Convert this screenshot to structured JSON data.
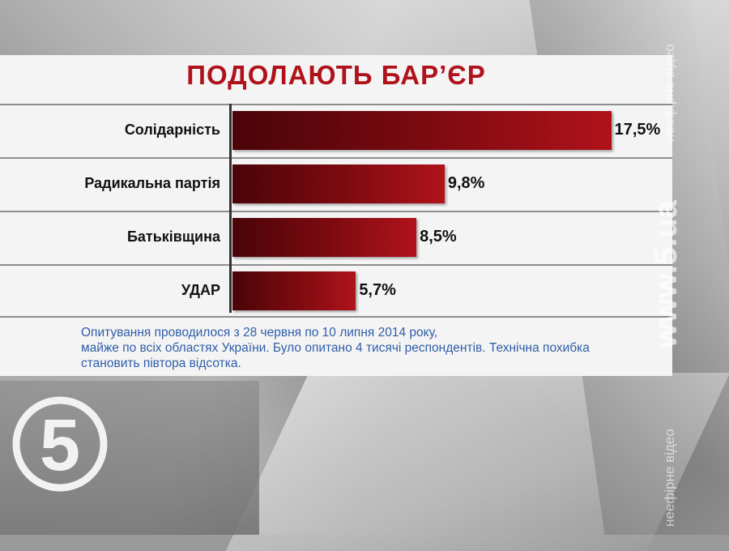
{
  "title": "ПОДОЛАЮТЬ БАР’ЄР",
  "chart_data": {
    "type": "bar",
    "orientation": "horizontal",
    "categories": [
      "Солідарність",
      "Радикальна партія",
      "Батьківщина",
      "УДАР"
    ],
    "values": [
      17.5,
      9.8,
      8.5,
      5.7
    ],
    "value_labels": [
      "17,5%",
      "9,8%",
      "8,5%",
      "5,7%"
    ],
    "title": "ПОДОЛАЮТЬ БАР’ЄР",
    "xlim": [
      0,
      18
    ],
    "bar_color": "#8b0a12"
  },
  "footnote": {
    "line1": "Опитування проводилося з 28 червня по 10 липня 2014 року,",
    "line2": "майже по всіх областях України. Було опитано  4 тисячі респондентів. Технічна похибка",
    "line3": "становить півтора відсотка."
  },
  "brand": {
    "logo_digit": "5",
    "site": "www.5.ua",
    "watermark": "неефірне відео"
  },
  "colors": {
    "title": "#b0121b",
    "footnote": "#2f5ea8"
  }
}
